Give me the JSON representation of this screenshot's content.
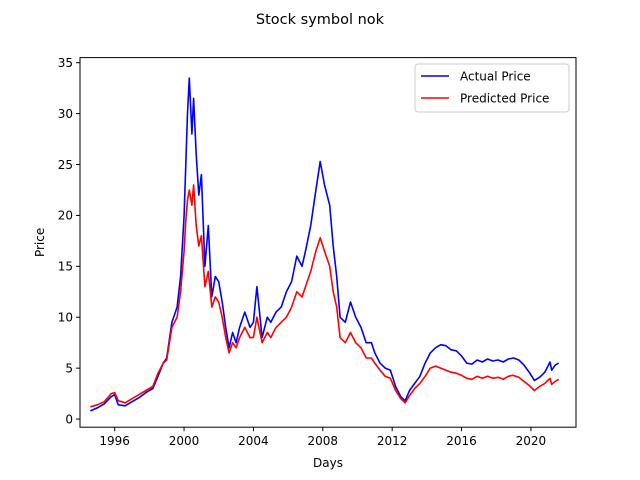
{
  "chart_data": {
    "type": "line",
    "title": "Stock symbol nok",
    "xlabel": "Days",
    "ylabel": "Price",
    "xlim": [
      1994.0,
      2022.6
    ],
    "ylim": [
      -0.8,
      35.5
    ],
    "xticks": [
      1996,
      2000,
      2004,
      2008,
      2012,
      2016,
      2020
    ],
    "xtick_labels": [
      "1996",
      "2000",
      "2004",
      "2008",
      "2012",
      "2016",
      "2020"
    ],
    "yticks": [
      0,
      5,
      10,
      15,
      20,
      25,
      30,
      35
    ],
    "ytick_labels": [
      "0",
      "5",
      "10",
      "15",
      "20",
      "25",
      "30",
      "35"
    ],
    "grid": false,
    "legend_position": "top-right",
    "series": [
      {
        "name": "Actual Price",
        "color": "#0000ff",
        "points": [
          [
            1994.6,
            0.8
          ],
          [
            1995.0,
            1.1
          ],
          [
            1995.4,
            1.5
          ],
          [
            1995.8,
            2.2
          ],
          [
            1996.0,
            2.4
          ],
          [
            1996.2,
            1.4
          ],
          [
            1996.6,
            1.3
          ],
          [
            1997.0,
            1.7
          ],
          [
            1997.4,
            2.1
          ],
          [
            1997.8,
            2.6
          ],
          [
            1998.2,
            3.0
          ],
          [
            1998.5,
            4.2
          ],
          [
            1998.8,
            5.5
          ],
          [
            1999.0,
            6.0
          ],
          [
            1999.3,
            9.5
          ],
          [
            1999.6,
            11.0
          ],
          [
            1999.8,
            14.0
          ],
          [
            2000.0,
            20.0
          ],
          [
            2000.1,
            25.0
          ],
          [
            2000.2,
            30.0
          ],
          [
            2000.3,
            33.5
          ],
          [
            2000.45,
            28.0
          ],
          [
            2000.55,
            31.5
          ],
          [
            2000.7,
            26.0
          ],
          [
            2000.85,
            22.0
          ],
          [
            2001.0,
            24.0
          ],
          [
            2001.2,
            15.0
          ],
          [
            2001.4,
            19.0
          ],
          [
            2001.6,
            12.0
          ],
          [
            2001.8,
            14.0
          ],
          [
            2002.0,
            13.5
          ],
          [
            2002.2,
            11.5
          ],
          [
            2002.4,
            9.0
          ],
          [
            2002.6,
            7.0
          ],
          [
            2002.8,
            8.5
          ],
          [
            2003.0,
            7.5
          ],
          [
            2003.2,
            9.0
          ],
          [
            2003.5,
            10.5
          ],
          [
            2003.8,
            9.0
          ],
          [
            2004.0,
            9.5
          ],
          [
            2004.2,
            13.0
          ],
          [
            2004.5,
            8.0
          ],
          [
            2004.8,
            10.0
          ],
          [
            2005.0,
            9.5
          ],
          [
            2005.3,
            10.5
          ],
          [
            2005.6,
            11.0
          ],
          [
            2005.9,
            12.5
          ],
          [
            2006.2,
            13.5
          ],
          [
            2006.5,
            16.0
          ],
          [
            2006.8,
            15.0
          ],
          [
            2007.0,
            16.5
          ],
          [
            2007.3,
            19.0
          ],
          [
            2007.6,
            22.5
          ],
          [
            2007.85,
            25.3
          ],
          [
            2008.1,
            23.0
          ],
          [
            2008.4,
            21.0
          ],
          [
            2008.6,
            17.0
          ],
          [
            2008.8,
            14.0
          ],
          [
            2009.0,
            10.0
          ],
          [
            2009.3,
            9.5
          ],
          [
            2009.6,
            11.5
          ],
          [
            2009.9,
            10.0
          ],
          [
            2010.2,
            9.0
          ],
          [
            2010.5,
            7.5
          ],
          [
            2010.8,
            7.5
          ],
          [
            2011.0,
            6.5
          ],
          [
            2011.3,
            5.5
          ],
          [
            2011.6,
            5.0
          ],
          [
            2011.9,
            4.8
          ],
          [
            2012.2,
            3.2
          ],
          [
            2012.5,
            2.2
          ],
          [
            2012.75,
            1.8
          ],
          [
            2013.0,
            2.8
          ],
          [
            2013.3,
            3.5
          ],
          [
            2013.6,
            4.2
          ],
          [
            2013.9,
            5.5
          ],
          [
            2014.2,
            6.5
          ],
          [
            2014.5,
            7.0
          ],
          [
            2014.8,
            7.3
          ],
          [
            2015.1,
            7.2
          ],
          [
            2015.4,
            6.8
          ],
          [
            2015.7,
            6.7
          ],
          [
            2016.0,
            6.2
          ],
          [
            2016.3,
            5.5
          ],
          [
            2016.6,
            5.4
          ],
          [
            2016.9,
            5.8
          ],
          [
            2017.2,
            5.6
          ],
          [
            2017.5,
            5.9
          ],
          [
            2017.8,
            5.7
          ],
          [
            2018.1,
            5.8
          ],
          [
            2018.4,
            5.6
          ],
          [
            2018.7,
            5.9
          ],
          [
            2019.0,
            6.0
          ],
          [
            2019.3,
            5.8
          ],
          [
            2019.6,
            5.3
          ],
          [
            2019.9,
            4.6
          ],
          [
            2020.2,
            3.8
          ],
          [
            2020.5,
            4.1
          ],
          [
            2020.8,
            4.6
          ],
          [
            2021.1,
            5.6
          ],
          [
            2021.2,
            4.8
          ],
          [
            2021.4,
            5.3
          ],
          [
            2021.6,
            5.5
          ]
        ]
      },
      {
        "name": "Predicted Price",
        "color": "#ff0000",
        "points": [
          [
            1994.6,
            1.2
          ],
          [
            1995.0,
            1.4
          ],
          [
            1995.4,
            1.7
          ],
          [
            1995.8,
            2.5
          ],
          [
            1996.0,
            2.6
          ],
          [
            1996.2,
            1.8
          ],
          [
            1996.6,
            1.6
          ],
          [
            1997.0,
            2.0
          ],
          [
            1997.4,
            2.4
          ],
          [
            1997.8,
            2.8
          ],
          [
            1998.2,
            3.2
          ],
          [
            1998.5,
            4.5
          ],
          [
            1998.8,
            5.5
          ],
          [
            1999.0,
            5.8
          ],
          [
            1999.3,
            9.0
          ],
          [
            1999.6,
            10.0
          ],
          [
            1999.8,
            12.5
          ],
          [
            2000.0,
            16.5
          ],
          [
            2000.1,
            19.5
          ],
          [
            2000.2,
            21.5
          ],
          [
            2000.3,
            22.5
          ],
          [
            2000.45,
            21.0
          ],
          [
            2000.55,
            23.0
          ],
          [
            2000.7,
            19.0
          ],
          [
            2000.85,
            17.0
          ],
          [
            2001.0,
            18.0
          ],
          [
            2001.2,
            13.0
          ],
          [
            2001.4,
            14.5
          ],
          [
            2001.6,
            11.0
          ],
          [
            2001.8,
            12.0
          ],
          [
            2002.0,
            11.5
          ],
          [
            2002.2,
            10.0
          ],
          [
            2002.4,
            8.0
          ],
          [
            2002.6,
            6.5
          ],
          [
            2002.8,
            7.5
          ],
          [
            2003.0,
            7.0
          ],
          [
            2003.2,
            8.0
          ],
          [
            2003.5,
            9.0
          ],
          [
            2003.8,
            8.0
          ],
          [
            2004.0,
            8.0
          ],
          [
            2004.2,
            10.0
          ],
          [
            2004.5,
            7.5
          ],
          [
            2004.8,
            8.5
          ],
          [
            2005.0,
            8.0
          ],
          [
            2005.3,
            9.0
          ],
          [
            2005.6,
            9.5
          ],
          [
            2005.9,
            10.0
          ],
          [
            2006.2,
            11.0
          ],
          [
            2006.5,
            12.5
          ],
          [
            2006.8,
            12.0
          ],
          [
            2007.0,
            13.0
          ],
          [
            2007.3,
            14.5
          ],
          [
            2007.6,
            16.5
          ],
          [
            2007.85,
            17.8
          ],
          [
            2008.1,
            16.5
          ],
          [
            2008.4,
            15.0
          ],
          [
            2008.6,
            12.5
          ],
          [
            2008.8,
            11.0
          ],
          [
            2009.0,
            8.0
          ],
          [
            2009.3,
            7.5
          ],
          [
            2009.6,
            8.5
          ],
          [
            2009.9,
            7.5
          ],
          [
            2010.2,
            7.0
          ],
          [
            2010.5,
            6.0
          ],
          [
            2010.8,
            6.0
          ],
          [
            2011.0,
            5.5
          ],
          [
            2011.3,
            4.8
          ],
          [
            2011.6,
            4.2
          ],
          [
            2011.9,
            4.0
          ],
          [
            2012.2,
            2.8
          ],
          [
            2012.5,
            2.0
          ],
          [
            2012.75,
            1.6
          ],
          [
            2013.0,
            2.3
          ],
          [
            2013.3,
            3.0
          ],
          [
            2013.6,
            3.5
          ],
          [
            2013.9,
            4.2
          ],
          [
            2014.2,
            5.0
          ],
          [
            2014.5,
            5.2
          ],
          [
            2014.8,
            5.0
          ],
          [
            2015.1,
            4.8
          ],
          [
            2015.4,
            4.6
          ],
          [
            2015.7,
            4.5
          ],
          [
            2016.0,
            4.3
          ],
          [
            2016.3,
            4.0
          ],
          [
            2016.6,
            3.9
          ],
          [
            2016.9,
            4.2
          ],
          [
            2017.2,
            4.0
          ],
          [
            2017.5,
            4.2
          ],
          [
            2017.8,
            4.0
          ],
          [
            2018.1,
            4.1
          ],
          [
            2018.4,
            3.9
          ],
          [
            2018.7,
            4.2
          ],
          [
            2018.95,
            4.3
          ],
          [
            2019.3,
            4.1
          ],
          [
            2019.6,
            3.7
          ],
          [
            2019.9,
            3.3
          ],
          [
            2020.2,
            2.8
          ],
          [
            2020.5,
            3.2
          ],
          [
            2020.8,
            3.5
          ],
          [
            2021.1,
            4.0
          ],
          [
            2021.2,
            3.4
          ],
          [
            2021.4,
            3.7
          ],
          [
            2021.6,
            3.9
          ]
        ]
      }
    ]
  }
}
